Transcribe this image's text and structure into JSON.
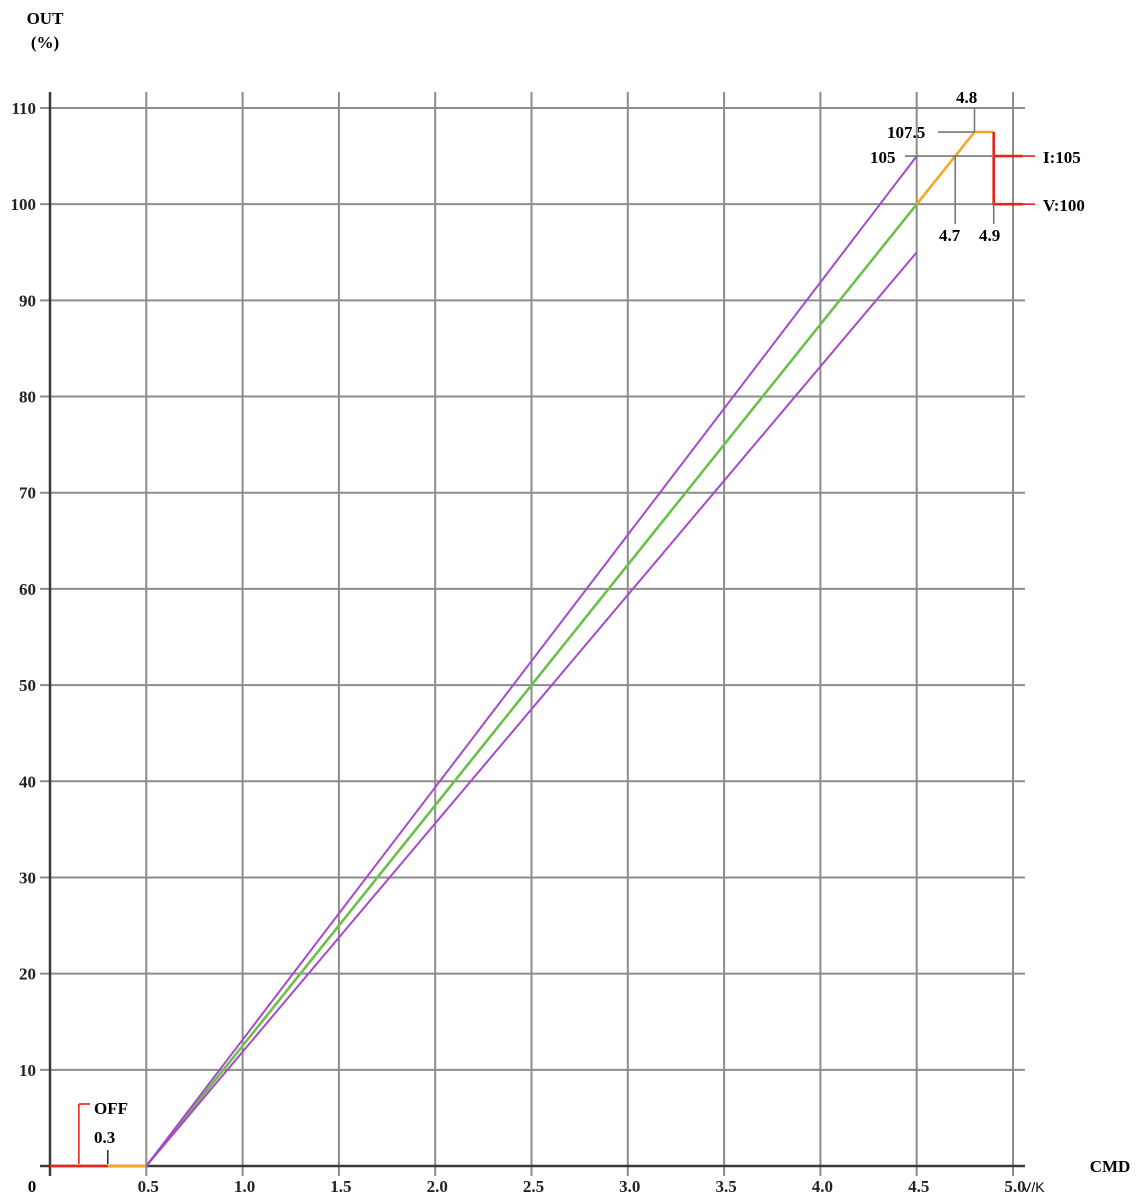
{
  "chart_data": {
    "type": "line",
    "axes": {
      "y_title_line1": "OUT",
      "y_title_line2": "(%)",
      "x_title": "CMD",
      "x_unit": "V/K",
      "xlim": [
        0,
        5.0
      ],
      "ylim": [
        0,
        110
      ],
      "origin_label": "0",
      "x_ticks": [
        {
          "value": 0.5,
          "label": "0.5"
        },
        {
          "value": 1.0,
          "label": "1.0"
        },
        {
          "value": 1.5,
          "label": "1.5"
        },
        {
          "value": 2.0,
          "label": "2.0"
        },
        {
          "value": 2.5,
          "label": "2.5"
        },
        {
          "value": 3.0,
          "label": "3.0"
        },
        {
          "value": 3.5,
          "label": "3.5"
        },
        {
          "value": 4.0,
          "label": "4.0"
        },
        {
          "value": 4.5,
          "label": "4.5"
        },
        {
          "value": 5.0,
          "label": "5.0"
        }
      ],
      "y_ticks": [
        {
          "value": 10,
          "label": "10"
        },
        {
          "value": 20,
          "label": "20"
        },
        {
          "value": 30,
          "label": "30"
        },
        {
          "value": 40,
          "label": "40"
        },
        {
          "value": 50,
          "label": "50"
        },
        {
          "value": 60,
          "label": "60"
        },
        {
          "value": 70,
          "label": "70"
        },
        {
          "value": 80,
          "label": "80"
        },
        {
          "value": 90,
          "label": "90"
        },
        {
          "value": 100,
          "label": "100"
        },
        {
          "value": 110,
          "label": "110"
        }
      ],
      "grid": true
    },
    "segments": [
      {
        "role": "off",
        "color": "#e8241c",
        "points": [
          [
            0,
            0
          ],
          [
            0.3,
            0
          ]
        ]
      },
      {
        "role": "deadband",
        "color": "#f5a623",
        "points": [
          [
            0.3,
            0
          ],
          [
            0.5,
            0
          ]
        ]
      },
      {
        "role": "nominal",
        "color": "#6cc04a",
        "points": [
          [
            0.5,
            0
          ],
          [
            4.5,
            100
          ]
        ]
      },
      {
        "role": "upper-tolerance",
        "color": "#a64ac9",
        "points": [
          [
            0.5,
            0
          ],
          [
            4.5,
            105
          ]
        ]
      },
      {
        "role": "lower-tolerance",
        "color": "#a64ac9",
        "points": [
          [
            0.5,
            0
          ],
          [
            4.5,
            95
          ]
        ]
      },
      {
        "role": "overrange",
        "color": "#f5a623",
        "points": [
          [
            4.5,
            100
          ],
          [
            4.8,
            107.5
          ],
          [
            4.9,
            107.5
          ]
        ]
      },
      {
        "role": "clamp",
        "color": "#e8241c",
        "points": [
          [
            4.9,
            107.5
          ],
          [
            4.9,
            100
          ],
          [
            5.05,
            100
          ]
        ]
      },
      {
        "role": "clamp-i",
        "color": "#e8241c",
        "points": [
          [
            4.9,
            105
          ],
          [
            5.05,
            105
          ]
        ]
      }
    ],
    "annotations": [
      {
        "text": "OFF"
      },
      {
        "text": "0.3"
      },
      {
        "text": "105"
      },
      {
        "text": "107.5"
      },
      {
        "text": "4.8"
      },
      {
        "text": "4.7"
      },
      {
        "text": "4.9"
      },
      {
        "text": "I:105"
      },
      {
        "text": "V:100"
      }
    ],
    "colors": {
      "grid": "#8c8c8c",
      "axis": "#3a3a3a",
      "text": "#222222"
    }
  }
}
